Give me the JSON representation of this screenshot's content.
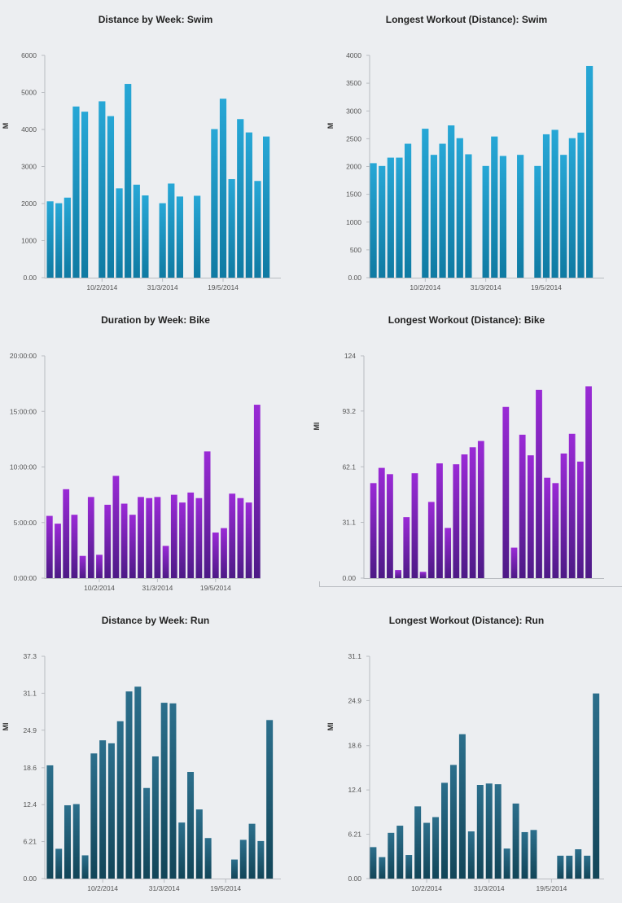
{
  "charts": [
    {
      "title": "Distance by Week: Swim",
      "chart_data": {
        "type": "bar",
        "title": "Distance by Week: Swim",
        "ylabel": "M",
        "xlabel": "",
        "ylim": [
          0,
          6000
        ],
        "yticks": [
          "0.00",
          "1000",
          "2000",
          "3000",
          "4000",
          "5000",
          "6000"
        ],
        "ytick_values": [
          0,
          1000,
          2000,
          3000,
          4000,
          5000,
          6000
        ],
        "xtick_labels": [
          {
            "slot": 6,
            "label": "10/2/2014"
          },
          {
            "slot": 13,
            "label": "31/3/2014"
          },
          {
            "slot": 20,
            "label": "19/5/2014"
          }
        ],
        "values": [
          2060,
          2010,
          2160,
          4620,
          4480,
          0,
          4760,
          4360,
          2410,
          5230,
          2510,
          2220,
          0,
          2010,
          2540,
          2190,
          0,
          2210,
          0,
          4010,
          4830,
          2660,
          4280,
          3920,
          2610,
          3810
        ],
        "color_top": "#27a7d6",
        "color_bottom": "#0f7aa2",
        "grid": false,
        "legend": "none"
      }
    },
    {
      "title": "Longest Workout (Distance): Swim",
      "chart_data": {
        "type": "bar",
        "title": "Longest Workout (Distance): Swim",
        "ylabel": "M",
        "xlabel": "",
        "ylim": [
          0,
          4000
        ],
        "yticks": [
          "0.00",
          "500",
          "1000",
          "1500",
          "2000",
          "2500",
          "3000",
          "3500",
          "4000"
        ],
        "ytick_values": [
          0,
          500,
          1000,
          1500,
          2000,
          2500,
          3000,
          3500,
          4000
        ],
        "xtick_labels": [
          {
            "slot": 6,
            "label": "10/2/2014"
          },
          {
            "slot": 13,
            "label": "31/3/2014"
          },
          {
            "slot": 20,
            "label": "19/5/2014"
          }
        ],
        "values": [
          2060,
          2010,
          2160,
          2160,
          2410,
          0,
          2680,
          2210,
          2410,
          2740,
          2510,
          2220,
          0,
          2010,
          2540,
          2190,
          0,
          2210,
          0,
          2010,
          2580,
          2660,
          2210,
          2510,
          2610,
          3810
        ],
        "color_top": "#27a7d6",
        "color_bottom": "#0f7aa2",
        "grid": false,
        "legend": "none"
      }
    },
    {
      "title": "Duration by Week: Bike",
      "chart_data": {
        "type": "bar",
        "title": "Duration by Week: Bike",
        "ylabel": "",
        "xlabel": "",
        "ylim": [
          0,
          20
        ],
        "yticks": [
          "0:00:00",
          "5:00:00",
          "10:00:00",
          "15:00:00",
          "20:00:00"
        ],
        "ytick_values": [
          0,
          5,
          10,
          15,
          20
        ],
        "value_unit": "hours",
        "xtick_labels": [
          {
            "slot": 6,
            "label": "10/2/2014"
          },
          {
            "slot": 13,
            "label": "31/3/2014"
          },
          {
            "slot": 20,
            "label": "19/5/2014"
          }
        ],
        "values": [
          5.6,
          4.9,
          8.0,
          5.7,
          2.0,
          7.3,
          2.1,
          6.6,
          9.2,
          6.7,
          5.7,
          7.3,
          7.2,
          7.3,
          2.9,
          7.5,
          6.8,
          7.7,
          7.2,
          11.4,
          4.1,
          4.5,
          7.6,
          7.2,
          6.8,
          15.6
        ],
        "color_top": "#9a2ad6",
        "color_bottom": "#4d1a86",
        "grid": false,
        "legend": "none"
      }
    },
    {
      "title": "Longest Workout (Distance): Bike",
      "chart_data": {
        "type": "bar",
        "title": "Longest Workout (Distance): Bike",
        "ylabel": "MI",
        "xlabel": "",
        "ylim": [
          0,
          124
        ],
        "yticks": [
          "0.00",
          "31.1",
          "62.1",
          "93.2",
          "124"
        ],
        "ytick_values": [
          0,
          31.1,
          62.1,
          93.2,
          124
        ],
        "xtick_labels": [],
        "values": [
          53,
          61.5,
          58,
          4.5,
          34,
          58.5,
          3.5,
          42.5,
          64,
          28,
          63.5,
          69,
          73,
          76.5,
          0,
          0,
          95.5,
          17,
          80,
          68.5,
          105,
          56,
          53,
          69.5,
          80.5,
          65,
          107
        ],
        "color_top": "#9a2ad6",
        "color_bottom": "#4d1a86",
        "grid": false,
        "legend": "none"
      }
    },
    {
      "title": "Distance by Week: Run",
      "chart_data": {
        "type": "bar",
        "title": "Distance by Week: Run",
        "ylabel": "MI",
        "xlabel": "",
        "ylim": [
          0,
          37.3
        ],
        "yticks": [
          "0.00",
          "6.21",
          "12.4",
          "18.6",
          "24.9",
          "31.1",
          "37.3"
        ],
        "ytick_values": [
          0,
          6.21,
          12.4,
          18.6,
          24.9,
          31.1,
          37.3
        ],
        "xtick_labels": [
          {
            "slot": 6,
            "label": "10/2/2014"
          },
          {
            "slot": 13,
            "label": "31/3/2014"
          },
          {
            "slot": 20,
            "label": "19/5/2014"
          }
        ],
        "values": [
          19.0,
          5.0,
          12.3,
          12.5,
          3.9,
          21.0,
          23.2,
          22.7,
          26.4,
          31.4,
          32.2,
          15.2,
          20.5,
          29.5,
          29.4,
          9.4,
          17.9,
          11.6,
          6.8,
          0,
          0,
          3.2,
          6.5,
          9.2,
          6.3,
          26.6
        ],
        "color_top": "#2c6f8c",
        "color_bottom": "#124558",
        "grid": false,
        "legend": "none"
      }
    },
    {
      "title": "Longest Workout (Distance): Run",
      "chart_data": {
        "type": "bar",
        "title": "Longest Workout (Distance): Run",
        "ylabel": "MI",
        "xlabel": "",
        "ylim": [
          0,
          31.1
        ],
        "yticks": [
          "0.00",
          "6.21",
          "12.4",
          "18.6",
          "24.9",
          "31.1"
        ],
        "ytick_values": [
          0,
          6.21,
          12.4,
          18.6,
          24.9,
          31.1
        ],
        "xtick_labels": [
          {
            "slot": 6,
            "label": "10/2/2014"
          },
          {
            "slot": 13,
            "label": "31/3/2014"
          },
          {
            "slot": 20,
            "label": "19/5/2014"
          }
        ],
        "values": [
          4.4,
          3.0,
          6.4,
          7.4,
          3.3,
          10.1,
          7.8,
          8.6,
          13.4,
          15.9,
          20.2,
          6.6,
          13.1,
          13.3,
          13.2,
          4.2,
          10.5,
          6.5,
          6.8,
          0,
          0,
          3.2,
          3.2,
          4.1,
          3.2,
          25.9
        ],
        "color_top": "#2c6f8c",
        "color_bottom": "#124558",
        "grid": false,
        "legend": "none"
      }
    }
  ]
}
